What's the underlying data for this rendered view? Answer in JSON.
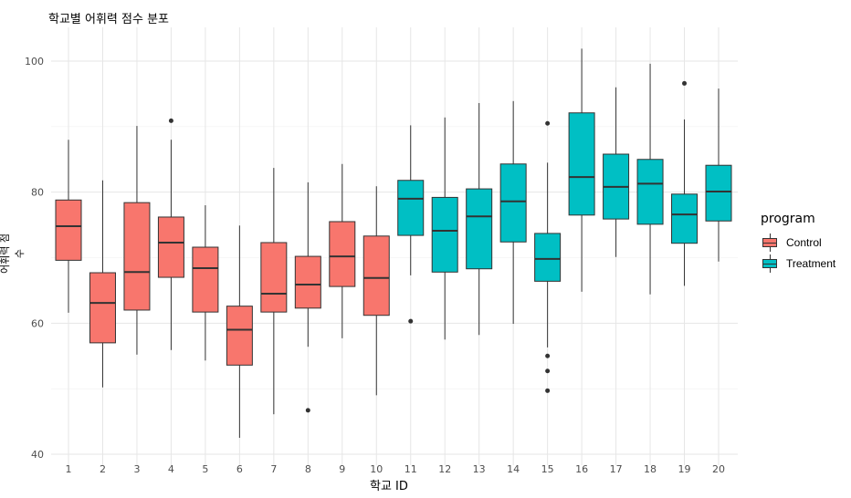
{
  "chart_data": {
    "type": "boxplot",
    "title": "학교별 어휘력 점수 분포",
    "xlabel": "학교 ID",
    "ylabel": "어휘력 점수",
    "ylim": [
      38.5,
      104
    ],
    "yticks": [
      40,
      60,
      80,
      100
    ],
    "grid": true,
    "legend": {
      "title": "program",
      "position": "right",
      "entries": [
        {
          "name": "Control",
          "color": "#F8766D"
        },
        {
          "name": "Treatment",
          "color": "#00BFC4"
        }
      ]
    },
    "categories": [
      "1",
      "2",
      "3",
      "4",
      "5",
      "6",
      "7",
      "8",
      "9",
      "10",
      "11",
      "12",
      "13",
      "14",
      "15",
      "16",
      "17",
      "18",
      "19",
      "20"
    ],
    "boxes": [
      {
        "school": "1",
        "program": "Control",
        "min": 61.6,
        "q1": 69.6,
        "median": 74.8,
        "q3": 78.8,
        "max": 88.0,
        "outliers": []
      },
      {
        "school": "2",
        "program": "Control",
        "min": 50.2,
        "q1": 57.0,
        "median": 63.1,
        "q3": 67.7,
        "max": 81.8,
        "outliers": []
      },
      {
        "school": "3",
        "program": "Control",
        "min": 55.2,
        "q1": 62.0,
        "median": 67.8,
        "q3": 78.4,
        "max": 90.1,
        "outliers": []
      },
      {
        "school": "4",
        "program": "Control",
        "min": 55.9,
        "q1": 67.0,
        "median": 72.3,
        "q3": 76.2,
        "max": 88.0,
        "outliers": [
          90.9
        ]
      },
      {
        "school": "5",
        "program": "Control",
        "min": 54.3,
        "q1": 61.7,
        "median": 68.4,
        "q3": 71.6,
        "max": 78.0,
        "outliers": []
      },
      {
        "school": "6",
        "program": "Control",
        "min": 42.5,
        "q1": 53.6,
        "median": 59.0,
        "q3": 62.6,
        "max": 74.9,
        "outliers": []
      },
      {
        "school": "7",
        "program": "Control",
        "min": 46.1,
        "q1": 61.7,
        "median": 64.5,
        "q3": 72.3,
        "max": 83.7,
        "outliers": []
      },
      {
        "school": "8",
        "program": "Control",
        "min": 56.4,
        "q1": 62.3,
        "median": 65.9,
        "q3": 70.2,
        "max": 81.5,
        "outliers": [
          46.7
        ]
      },
      {
        "school": "9",
        "program": "Control",
        "min": 57.7,
        "q1": 65.6,
        "median": 70.2,
        "q3": 75.5,
        "max": 84.3,
        "outliers": []
      },
      {
        "school": "10",
        "program": "Control",
        "min": 49.0,
        "q1": 61.2,
        "median": 66.9,
        "q3": 73.3,
        "max": 80.9,
        "outliers": []
      },
      {
        "school": "11",
        "program": "Treatment",
        "min": 67.3,
        "q1": 73.4,
        "median": 79.0,
        "q3": 81.8,
        "max": 90.2,
        "outliers": [
          60.3
        ]
      },
      {
        "school": "12",
        "program": "Treatment",
        "min": 57.5,
        "q1": 67.8,
        "median": 74.1,
        "q3": 79.2,
        "max": 91.4,
        "outliers": []
      },
      {
        "school": "13",
        "program": "Treatment",
        "min": 58.2,
        "q1": 68.3,
        "median": 76.3,
        "q3": 80.5,
        "max": 93.6,
        "outliers": []
      },
      {
        "school": "14",
        "program": "Treatment",
        "min": 59.9,
        "q1": 72.4,
        "median": 78.6,
        "q3": 84.3,
        "max": 93.9,
        "outliers": []
      },
      {
        "school": "15",
        "program": "Treatment",
        "min": 56.3,
        "q1": 66.4,
        "median": 69.8,
        "q3": 73.7,
        "max": 84.5,
        "outliers": [
          90.5,
          55.0,
          52.7,
          49.7
        ]
      },
      {
        "school": "16",
        "program": "Treatment",
        "min": 64.8,
        "q1": 76.5,
        "median": 82.3,
        "q3": 92.1,
        "max": 101.9,
        "outliers": []
      },
      {
        "school": "17",
        "program": "Treatment",
        "min": 70.1,
        "q1": 75.9,
        "median": 80.8,
        "q3": 85.8,
        "max": 96.0,
        "outliers": []
      },
      {
        "school": "18",
        "program": "Treatment",
        "min": 64.4,
        "q1": 75.1,
        "median": 81.3,
        "q3": 85.0,
        "max": 99.6,
        "outliers": []
      },
      {
        "school": "19",
        "program": "Treatment",
        "min": 65.7,
        "q1": 72.2,
        "median": 76.6,
        "q3": 79.7,
        "max": 91.1,
        "outliers": [
          96.6
        ]
      },
      {
        "school": "20",
        "program": "Treatment",
        "min": 69.4,
        "q1": 75.6,
        "median": 80.1,
        "q3": 84.1,
        "max": 95.8,
        "outliers": []
      }
    ]
  }
}
